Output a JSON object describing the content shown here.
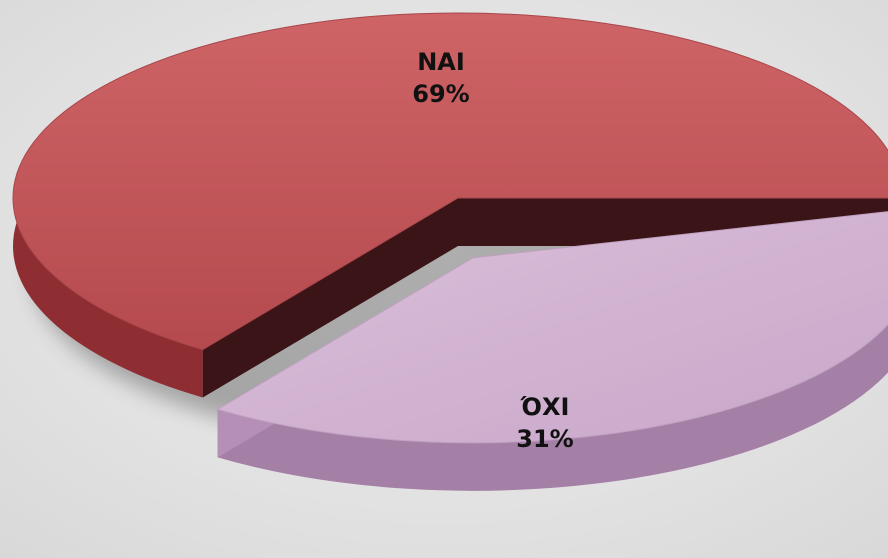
{
  "chart_data": {
    "type": "pie",
    "title": "",
    "style": "3d-exploded",
    "slices": [
      {
        "label": "NAI",
        "value": 69,
        "value_label": "69%",
        "color": "#c75a5d"
      },
      {
        "label": "ΌΧΙ",
        "value": 31,
        "value_label": "31%",
        "color": "#d6b9d6",
        "exploded": true
      }
    ]
  }
}
